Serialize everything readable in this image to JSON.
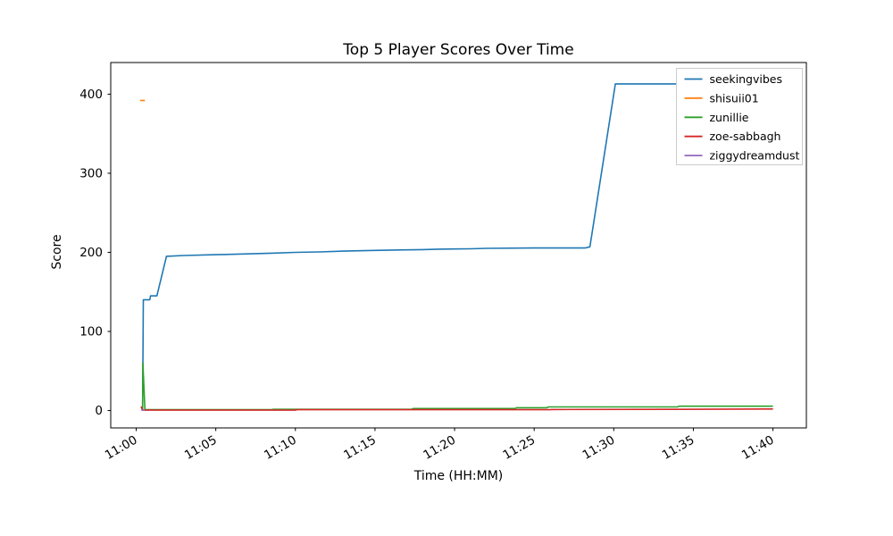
{
  "chart_data": {
    "type": "line",
    "title": "Top 5 Player Scores Over Time",
    "xlabel": "Time (HH:MM)",
    "ylabel": "Score",
    "x_unit": "minutes after 11:00",
    "grid": false,
    "legend_position": "upper right",
    "xlim_minutes": [
      -1.6,
      42.1
    ],
    "ylim": [
      -22,
      440
    ],
    "x_ticks": [
      {
        "t": 0,
        "label": "11:00"
      },
      {
        "t": 5,
        "label": "11:05"
      },
      {
        "t": 10,
        "label": "11:10"
      },
      {
        "t": 15,
        "label": "11:15"
      },
      {
        "t": 20,
        "label": "11:20"
      },
      {
        "t": 25,
        "label": "11:25"
      },
      {
        "t": 30,
        "label": "11:30"
      },
      {
        "t": 35,
        "label": "11:35"
      },
      {
        "t": 40,
        "label": "11:40"
      }
    ],
    "y_ticks": [
      0,
      100,
      200,
      300,
      400
    ],
    "series": [
      {
        "name": "seekingvibes",
        "color": "#1f77b4",
        "points": [
          [
            0.4,
            2
          ],
          [
            0.45,
            140
          ],
          [
            0.85,
            140
          ],
          [
            0.9,
            145
          ],
          [
            1.3,
            145
          ],
          [
            1.9,
            195
          ],
          [
            3,
            196
          ],
          [
            5,
            197
          ],
          [
            7,
            198
          ],
          [
            8.5,
            199
          ],
          [
            10,
            200
          ],
          [
            11.5,
            200.5
          ],
          [
            13,
            201.5
          ],
          [
            15,
            202.5
          ],
          [
            16.5,
            203
          ],
          [
            18,
            203.5
          ],
          [
            19,
            204
          ],
          [
            21,
            204.5
          ],
          [
            22,
            205
          ],
          [
            25,
            205.5
          ],
          [
            28.2,
            205.5
          ],
          [
            28.5,
            207
          ],
          [
            30.1,
            413
          ],
          [
            40,
            413
          ]
        ]
      },
      {
        "name": "shisuii01",
        "color": "#ff7f0e",
        "points": [
          [
            0.25,
            392
          ],
          [
            0.55,
            392
          ]
        ]
      },
      {
        "name": "zunillie",
        "color": "#2ca02c",
        "points": [
          [
            0.4,
            0
          ],
          [
            0.42,
            60
          ],
          [
            0.55,
            1
          ],
          [
            8.5,
            1
          ],
          [
            8.6,
            1.5
          ],
          [
            17.3,
            1.5
          ],
          [
            17.4,
            2.5
          ],
          [
            23.8,
            2.5
          ],
          [
            23.9,
            3.5
          ],
          [
            25.8,
            3.5
          ],
          [
            25.9,
            4.5
          ],
          [
            34,
            4.5
          ],
          [
            34.1,
            5.5
          ],
          [
            40,
            5.5
          ]
        ]
      },
      {
        "name": "zoe-sabbagh",
        "color": "#d62728",
        "points": [
          [
            0.3,
            5
          ],
          [
            0.4,
            0.5
          ],
          [
            10,
            0.5
          ],
          [
            10.1,
            1
          ],
          [
            26,
            1
          ],
          [
            26.1,
            1.3
          ],
          [
            34,
            1.5
          ],
          [
            40,
            2
          ]
        ]
      },
      {
        "name": "ziggydreamdust",
        "color": "#9467bd",
        "points": [
          [
            0.3,
            1
          ],
          [
            0.55,
            0.3
          ]
        ]
      }
    ]
  }
}
